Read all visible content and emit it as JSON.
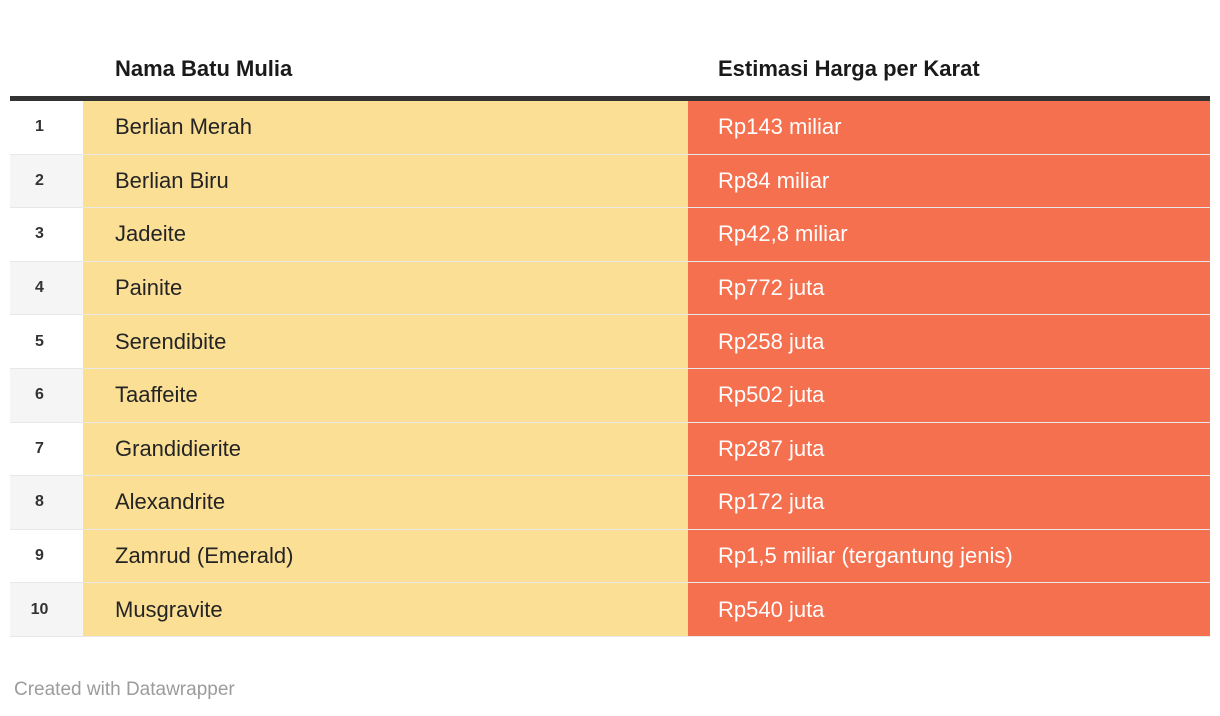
{
  "page": {
    "background": "#ffffff"
  },
  "table": {
    "headers": {
      "name": "Nama Batu Mulia",
      "price": "Estimasi Harga per Karat"
    },
    "rows": [
      {
        "rank": "1",
        "name": "Berlian Merah",
        "price": "Rp143 miliar"
      },
      {
        "rank": "2",
        "name": "Berlian Biru",
        "price": "Rp84 miliar"
      },
      {
        "rank": "3",
        "name": "Jadeite",
        "price": "Rp42,8 miliar"
      },
      {
        "rank": "4",
        "name": "Painite",
        "price": "Rp772 juta"
      },
      {
        "rank": "5",
        "name": "Serendibite",
        "price": "Rp258 juta"
      },
      {
        "rank": "6",
        "name": "Taaffeite",
        "price": "Rp502 juta"
      },
      {
        "rank": "7",
        "name": "Grandidierite",
        "price": "Rp287 juta"
      },
      {
        "rank": "8",
        "name": "Alexandrite",
        "price": "Rp172 juta"
      },
      {
        "rank": "9",
        "name": "Zamrud (Emerald)",
        "price": "Rp1,5 miliar (tergantung jenis)"
      },
      {
        "rank": "10",
        "name": "Musgravite",
        "price": "Rp540 juta"
      }
    ],
    "colors": {
      "name_column_bg": "#fbdf94",
      "price_column_bg": "#f5704e",
      "price_text": "#ffffff",
      "header_rule": "#333333",
      "rank_alt_row_bg": "#f5f5f5",
      "row_separator": "#e8e8e8",
      "header_text": "#1a1a1a",
      "footer_text": "#9c9c9c"
    }
  },
  "footer": {
    "credit": "Created with Datawrapper"
  },
  "chart_data": {
    "type": "table",
    "title": "",
    "columns": [
      "#",
      "Nama Batu Mulia",
      "Estimasi Harga per Karat"
    ],
    "rows": [
      [
        "1",
        "Berlian Merah",
        "Rp143 miliar"
      ],
      [
        "2",
        "Berlian Biru",
        "Rp84 miliar"
      ],
      [
        "3",
        "Jadeite",
        "Rp42,8 miliar"
      ],
      [
        "4",
        "Painite",
        "Rp772 juta"
      ],
      [
        "5",
        "Serendibite",
        "Rp258 juta"
      ],
      [
        "6",
        "Taaffeite",
        "Rp502 juta"
      ],
      [
        "7",
        "Grandidierite",
        "Rp287 juta"
      ],
      [
        "8",
        "Alexandrite",
        "Rp172 juta"
      ],
      [
        "9",
        "Zamrud (Emerald)",
        "Rp1,5 miliar (tergantung jenis)"
      ],
      [
        "10",
        "Musgravite",
        "Rp540 juta"
      ]
    ],
    "notes": "Datawrapper table; name cells highlighted yellow, price cells highlighted orange with white text"
  }
}
